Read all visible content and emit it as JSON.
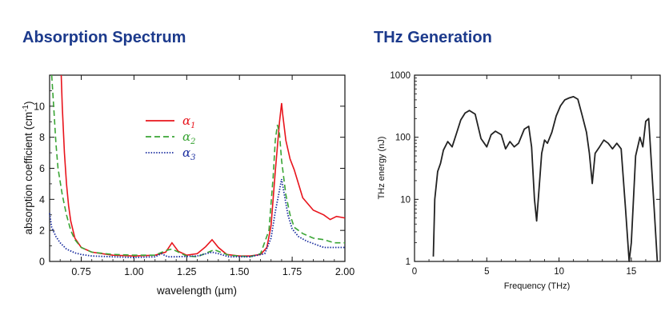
{
  "chart_data": [
    {
      "type": "line",
      "title": "Absorption Spectrum",
      "xlabel": "wavelength (µm)",
      "ylabel": "absorption coefficient  (cm-1)",
      "ylabel_main": "absorption coefficient  (cm",
      "ylabel_sup": "-1",
      "ylabel_close": ")",
      "xlim": [
        0.6,
        2.0
      ],
      "ylim": [
        0,
        12
      ],
      "x_ticks": [
        0.75,
        1.0,
        1.25,
        1.5,
        1.75,
        2.0
      ],
      "x_tick_labels": [
        "0.75",
        "1.00",
        "1.25",
        "1.50",
        "1.75",
        "2.00"
      ],
      "y_ticks": [
        0,
        2,
        4,
        6,
        8,
        10
      ],
      "y_tick_labels": [
        "0",
        "2",
        "4",
        "6",
        "8",
        "10"
      ],
      "legend_position": "top-center",
      "series": [
        {
          "name": "α1",
          "legend_symbol": "α",
          "legend_sub": "1",
          "color": "#e8141c",
          "style": "solid",
          "x": [
            0.655,
            0.66,
            0.67,
            0.68,
            0.69,
            0.7,
            0.72,
            0.75,
            0.8,
            0.9,
            1.0,
            1.1,
            1.15,
            1.18,
            1.21,
            1.25,
            1.3,
            1.34,
            1.37,
            1.4,
            1.44,
            1.5,
            1.55,
            1.6,
            1.63,
            1.65,
            1.67,
            1.69,
            1.7,
            1.705,
            1.72,
            1.74,
            1.76,
            1.78,
            1.8,
            1.85,
            1.9,
            1.93,
            1.96,
            2.0
          ],
          "y": [
            12,
            10,
            7,
            5,
            3.6,
            2.6,
            1.5,
            0.9,
            0.6,
            0.4,
            0.35,
            0.4,
            0.6,
            1.2,
            0.65,
            0.4,
            0.5,
            0.95,
            1.4,
            0.9,
            0.45,
            0.35,
            0.35,
            0.45,
            0.9,
            2.3,
            5.8,
            9,
            10.2,
            9.5,
            7.8,
            6.6,
            5.9,
            5.0,
            4.1,
            3.3,
            3.0,
            2.7,
            2.9,
            2.8
          ]
        },
        {
          "name": "α2",
          "legend_symbol": "α",
          "legend_sub": "2",
          "color": "#3aa535",
          "style": "dashed",
          "x": [
            0.61,
            0.62,
            0.63,
            0.64,
            0.66,
            0.68,
            0.7,
            0.72,
            0.75,
            0.8,
            0.9,
            1.0,
            1.1,
            1.15,
            1.18,
            1.25,
            1.3,
            1.38,
            1.45,
            1.55,
            1.6,
            1.64,
            1.66,
            1.67,
            1.68,
            1.69,
            1.7,
            1.72,
            1.74,
            1.76,
            1.8,
            1.85,
            1.9,
            1.95,
            2.0
          ],
          "y": [
            12,
            9.8,
            7.6,
            6.0,
            4.3,
            3.0,
            2.0,
            1.4,
            0.9,
            0.6,
            0.45,
            0.4,
            0.4,
            0.7,
            0.8,
            0.35,
            0.3,
            0.75,
            0.4,
            0.3,
            0.5,
            2.0,
            5.5,
            7.8,
            8.8,
            8.2,
            6.5,
            4.3,
            3.0,
            2.2,
            1.8,
            1.5,
            1.4,
            1.2,
            1.2
          ]
        },
        {
          "name": "α3",
          "legend_symbol": "α",
          "legend_sub": "3",
          "color": "#1c2fa0",
          "style": "dotted",
          "x": [
            0.6,
            0.61,
            0.63,
            0.65,
            0.68,
            0.72,
            0.75,
            0.8,
            0.9,
            1.0,
            1.1,
            1.13,
            1.16,
            1.2,
            1.3,
            1.37,
            1.4,
            1.45,
            1.55,
            1.62,
            1.65,
            1.67,
            1.69,
            1.7,
            1.71,
            1.73,
            1.75,
            1.78,
            1.82,
            1.86,
            1.9,
            1.95,
            2.0
          ],
          "y": [
            3.1,
            2.2,
            1.6,
            1.2,
            0.8,
            0.55,
            0.45,
            0.35,
            0.3,
            0.25,
            0.3,
            0.5,
            0.3,
            0.3,
            0.35,
            0.6,
            0.5,
            0.3,
            0.3,
            0.5,
            1.5,
            3.2,
            4.6,
            5.3,
            4.5,
            3.0,
            2.1,
            1.6,
            1.3,
            1.1,
            0.9,
            0.9,
            0.9
          ]
        }
      ]
    },
    {
      "type": "line",
      "title": "THz Generation",
      "xlabel": "Frequency (THz)",
      "ylabel": "THz energy (nJ)",
      "xlim": [
        0,
        17
      ],
      "ylim": [
        1,
        1000
      ],
      "yscale": "log",
      "x_ticks": [
        0,
        5,
        10,
        15
      ],
      "x_tick_labels": [
        "0",
        "5",
        "10",
        "15"
      ],
      "y_ticks": [
        1,
        10,
        100,
        1000
      ],
      "y_tick_labels": [
        "1",
        "10",
        "100",
        "1000"
      ],
      "series": [
        {
          "color": "#222222",
          "x": [
            1.3,
            1.4,
            1.6,
            1.8,
            2.0,
            2.3,
            2.6,
            2.9,
            3.2,
            3.5,
            3.8,
            4.2,
            4.6,
            5.0,
            5.3,
            5.6,
            6.0,
            6.3,
            6.6,
            6.9,
            7.2,
            7.6,
            7.9,
            8.1,
            8.3,
            8.45,
            8.6,
            8.8,
            9.0,
            9.2,
            9.5,
            9.8,
            10.1,
            10.4,
            10.7,
            11.0,
            11.3,
            11.6,
            11.9,
            12.1,
            12.3,
            12.5,
            12.8,
            13.1,
            13.4,
            13.7,
            14.0,
            14.3,
            14.6,
            14.85,
            15.0,
            15.3,
            15.6,
            15.8,
            16.0,
            16.2,
            16.6,
            16.8
          ],
          "y": [
            1.2,
            10,
            28,
            38,
            62,
            85,
            70,
            115,
            190,
            245,
            270,
            235,
            95,
            70,
            110,
            125,
            110,
            65,
            85,
            70,
            80,
            135,
            150,
            70,
            10,
            4.5,
            13,
            55,
            90,
            80,
            120,
            220,
            320,
            400,
            430,
            450,
            410,
            225,
            120,
            55,
            18,
            55,
            70,
            90,
            80,
            65,
            80,
            65,
            7,
            1,
            2,
            50,
            100,
            70,
            180,
            200,
            6,
            1
          ]
        }
      ]
    }
  ]
}
